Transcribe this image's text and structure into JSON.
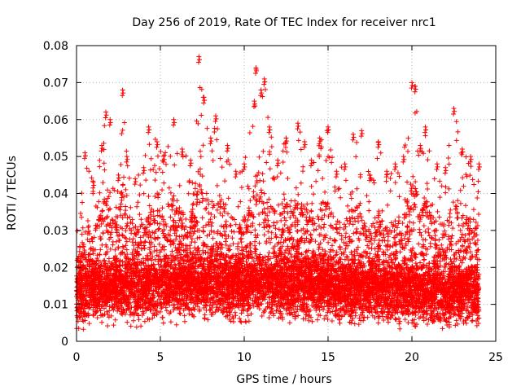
{
  "chart_data": {
    "type": "scatter",
    "title": "Day 256 of 2019, Rate Of TEC Index for receiver nrc1",
    "xlabel": "GPS time / hours",
    "ylabel": "ROTI / TECUs",
    "xlim": [
      0,
      25
    ],
    "ylim": [
      0,
      0.08
    ],
    "x_ticks": [
      "0",
      "5",
      "10",
      "15",
      "20",
      "25"
    ],
    "y_ticks": [
      "0",
      "0.01",
      "0.02",
      "0.03",
      "0.04",
      "0.05",
      "0.06",
      "0.07",
      "0.08"
    ],
    "grid": true,
    "marker": "plus",
    "color": "#ff0000",
    "series": [
      {
        "baseline": [
          [
            0.0,
            0.013
          ],
          [
            1.0,
            0.014
          ],
          [
            2.0,
            0.015
          ],
          [
            3.0,
            0.015
          ],
          [
            4.0,
            0.014
          ],
          [
            5.0,
            0.015
          ],
          [
            6.0,
            0.015
          ],
          [
            7.0,
            0.016
          ],
          [
            8.0,
            0.016
          ],
          [
            9.0,
            0.015
          ],
          [
            10.0,
            0.015
          ],
          [
            11.0,
            0.016
          ],
          [
            12.0,
            0.015
          ],
          [
            13.0,
            0.016
          ],
          [
            14.0,
            0.015
          ],
          [
            15.0,
            0.015
          ],
          [
            16.0,
            0.014
          ],
          [
            17.0,
            0.014
          ],
          [
            18.0,
            0.014
          ],
          [
            19.0,
            0.014
          ],
          [
            20.0,
            0.014
          ],
          [
            21.0,
            0.013
          ],
          [
            22.0,
            0.013
          ],
          [
            23.0,
            0.014
          ],
          [
            24.0,
            0.013
          ]
        ],
        "envelope_max": [
          [
            0.0,
            0.031
          ],
          [
            0.5,
            0.051
          ],
          [
            1.0,
            0.043
          ],
          [
            1.5,
            0.053
          ],
          [
            1.75,
            0.062
          ],
          [
            2.0,
            0.06
          ],
          [
            2.5,
            0.045
          ],
          [
            2.75,
            0.068
          ],
          [
            3.0,
            0.05
          ],
          [
            3.5,
            0.044
          ],
          [
            4.0,
            0.047
          ],
          [
            4.3,
            0.058
          ],
          [
            4.8,
            0.054
          ],
          [
            5.2,
            0.05
          ],
          [
            5.8,
            0.06
          ],
          [
            6.3,
            0.052
          ],
          [
            6.8,
            0.049
          ],
          [
            7.3,
            0.077
          ],
          [
            7.6,
            0.066
          ],
          [
            8.0,
            0.055
          ],
          [
            8.3,
            0.061
          ],
          [
            9.0,
            0.053
          ],
          [
            9.5,
            0.046
          ],
          [
            10.0,
            0.048
          ],
          [
            10.6,
            0.065
          ],
          [
            10.7,
            0.074
          ],
          [
            11.0,
            0.068
          ],
          [
            11.2,
            0.071
          ],
          [
            11.5,
            0.058
          ],
          [
            12.0,
            0.049
          ],
          [
            12.5,
            0.055
          ],
          [
            13.2,
            0.059
          ],
          [
            13.6,
            0.054
          ],
          [
            14.0,
            0.049
          ],
          [
            14.5,
            0.055
          ],
          [
            15.0,
            0.058
          ],
          [
            15.5,
            0.046
          ],
          [
            16.0,
            0.048
          ],
          [
            16.5,
            0.056
          ],
          [
            17.0,
            0.057
          ],
          [
            17.5,
            0.045
          ],
          [
            18.0,
            0.054
          ],
          [
            18.5,
            0.046
          ],
          [
            19.0,
            0.048
          ],
          [
            19.5,
            0.05
          ],
          [
            20.0,
            0.07
          ],
          [
            20.2,
            0.069
          ],
          [
            20.5,
            0.053
          ],
          [
            20.8,
            0.058
          ],
          [
            21.5,
            0.048
          ],
          [
            22.0,
            0.047
          ],
          [
            22.5,
            0.063
          ],
          [
            23.0,
            0.052
          ],
          [
            23.5,
            0.05
          ],
          [
            24.0,
            0.048
          ]
        ]
      }
    ]
  }
}
